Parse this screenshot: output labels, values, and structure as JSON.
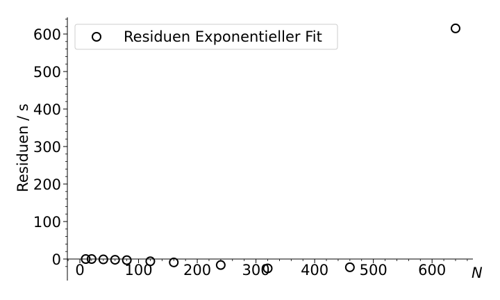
{
  "chart_data": {
    "type": "scatter",
    "xlabel": "N",
    "ylabel": "Residuen / s",
    "xlim": [
      -20,
      670
    ],
    "ylim": [
      -58,
      645
    ],
    "xticks": [
      0,
      100,
      200,
      300,
      400,
      500,
      600
    ],
    "yticks": [
      0,
      100,
      200,
      300,
      400,
      500,
      600
    ],
    "grid": false,
    "legend_position": "top-left",
    "series": [
      {
        "name": "Residuen Exponentieller Fit",
        "marker": "open-circle",
        "color": "#000000",
        "x": [
          10,
          20,
          40,
          60,
          80,
          120,
          160,
          240,
          320,
          460,
          640
        ],
        "y": [
          0,
          0,
          -1,
          -2,
          -3,
          -6,
          -9,
          -16,
          -25,
          -22,
          615
        ]
      }
    ]
  }
}
